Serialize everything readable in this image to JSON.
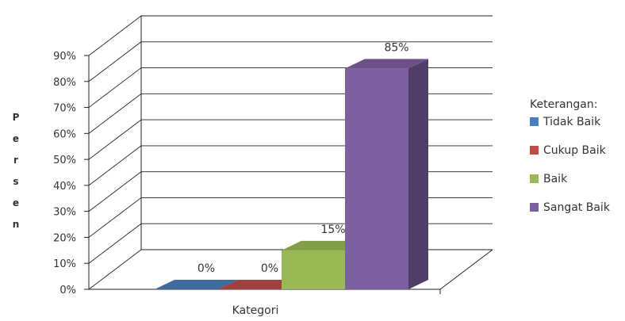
{
  "chart_data": {
    "type": "bar",
    "categories": [
      "Kategori"
    ],
    "series": [
      {
        "name": "Tidak Baik",
        "values": [
          0
        ],
        "label": "0%",
        "color": "#4A7EBB"
      },
      {
        "name": "Cukup Baik",
        "values": [
          0
        ],
        "label": "0%",
        "color": "#BE4B48"
      },
      {
        "name": "Baik",
        "values": [
          15
        ],
        "label": "15%",
        "color": "#98B954"
      },
      {
        "name": "Sangat Baik",
        "values": [
          85
        ],
        "label": "85%",
        "color": "#7D60A0"
      }
    ],
    "xlabel": "Kategori",
    "ylabel": "Persen",
    "ylim": [
      0,
      90
    ],
    "yticks": [
      "0%",
      "10%",
      "20%",
      "30%",
      "40%",
      "50%",
      "60%",
      "70%",
      "80%",
      "90%"
    ],
    "legend": {
      "title": "Keterangan:",
      "position": "right"
    },
    "grid": true,
    "style": "3d-column"
  }
}
